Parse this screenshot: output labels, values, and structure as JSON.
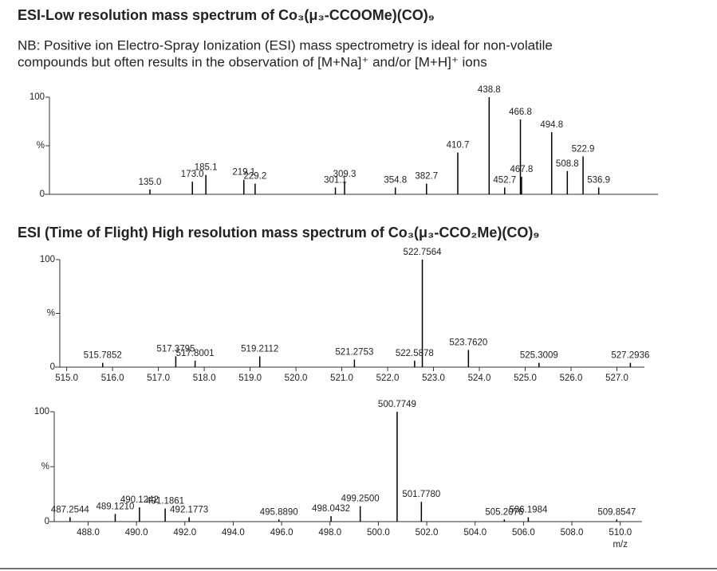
{
  "title": "ESI-Low resolution mass spectrum of Co₃(μ₃-CCOOMe)(CO)₉",
  "note": [
    "NB: Positive ion Electro-Spray Ionization (ESI) mass spectrometry is ideal for non-volatile",
    "compounds but often results in the observation of [M+Na]⁺ and/or [M+H]⁺ ions"
  ],
  "section_title": "ESI (Time of Flight) High resolution mass spectrum of Co₃(μ₃-CCO₂Me)(CO)₉",
  "chart_data": [
    {
      "type": "stick",
      "xlim": [
        45,
        590
      ],
      "ylim": [
        0,
        100
      ],
      "yticks": [
        0,
        {
          "value": 50,
          "label": "%"
        },
        100
      ],
      "x": [
        135.0,
        173.0,
        185.1,
        219.1,
        229.2,
        301.1,
        309.3,
        354.8,
        382.7,
        410.7,
        438.8,
        452.7,
        466.8,
        467.8,
        494.8,
        508.8,
        522.9,
        536.9
      ],
      "x_labels": [
        "135.0",
        "173.0",
        "185.1",
        "219.1",
        "229.2",
        "301.1",
        "309.3",
        "354.8",
        "382.7",
        "410.7",
        "438.8",
        "452.7",
        "466.8",
        "467.8",
        "494.8",
        "508.8",
        "522.9",
        "536.9"
      ],
      "values": [
        5,
        13,
        20,
        15,
        11,
        7,
        13,
        7,
        11,
        43,
        100,
        7,
        77,
        18,
        64,
        24,
        39,
        7
      ],
      "color": "#000000"
    },
    {
      "type": "stick",
      "xlim": [
        514.85,
        527.6
      ],
      "ylim": [
        0,
        100
      ],
      "yticks": [
        0,
        {
          "value": 50,
          "label": "%"
        },
        100
      ],
      "xticks": [
        {
          "value": 515,
          "label": "515.0"
        },
        {
          "value": 516,
          "label": "516.0"
        },
        {
          "value": 517,
          "label": "517.0"
        },
        {
          "value": 518,
          "label": "518.0"
        },
        {
          "value": 519,
          "label": "519.0"
        },
        {
          "value": 520,
          "label": "520.0"
        },
        {
          "value": 521,
          "label": "521.0"
        },
        {
          "value": 522,
          "label": "522.0"
        },
        {
          "value": 523,
          "label": "523.0"
        },
        {
          "value": 524,
          "label": "524.0"
        },
        {
          "value": 525,
          "label": "525.0"
        },
        {
          "value": 526,
          "label": "526.0"
        },
        {
          "value": 527,
          "label": "527.0"
        }
      ],
      "x": [
        515.7852,
        517.3795,
        517.8001,
        519.2112,
        521.2753,
        522.5878,
        522.7564,
        523.762,
        525.3009,
        527.2936
      ],
      "x_labels": [
        "515.7852",
        "517.3795",
        "517.8001",
        "519.2112",
        "521.2753",
        "522.5878",
        "522.7564",
        "523.7620",
        "525.3009",
        "527.2936"
      ],
      "values": [
        4,
        10,
        6,
        10,
        7,
        6,
        100,
        16,
        4,
        4
      ],
      "color": "#000000"
    },
    {
      "type": "stick",
      "xlim": [
        486.6,
        510.9
      ],
      "ylim": [
        0,
        100
      ],
      "yticks": [
        0,
        {
          "value": 50,
          "label": "%"
        },
        100
      ],
      "xlabel": "m/z",
      "xticks": [
        {
          "value": 488,
          "label": "488.0"
        },
        {
          "value": 490,
          "label": "490.0"
        },
        {
          "value": 492,
          "label": "492.0"
        },
        {
          "value": 494,
          "label": "494.0"
        },
        {
          "value": 496,
          "label": "496.0"
        },
        {
          "value": 498,
          "label": "498.0"
        },
        {
          "value": 500,
          "label": "500.0"
        },
        {
          "value": 502,
          "label": "502.0"
        },
        {
          "value": 504,
          "label": "504.0"
        },
        {
          "value": 506,
          "label": "506.0"
        },
        {
          "value": 508,
          "label": "508.0"
        },
        {
          "value": 510,
          "label": "510.0"
        }
      ],
      "x": [
        487.2544,
        489.121,
        490.1242,
        491.1861,
        492.1773,
        495.889,
        498.0432,
        499.25,
        500.7749,
        501.778,
        505.2076,
        506.1984,
        509.8547
      ],
      "x_labels": [
        "487.2544",
        "489.1210",
        "490.1242",
        "491.1861",
        "492.1773",
        "495.8890",
        "498.0432",
        "499.2500",
        "500.7749",
        "501.7780",
        "505.2076",
        "506.1984",
        "509.8547"
      ],
      "values": [
        4,
        7,
        13,
        12,
        4,
        2,
        5,
        14,
        100,
        18,
        2,
        4,
        2
      ],
      "color": "#000000"
    }
  ]
}
